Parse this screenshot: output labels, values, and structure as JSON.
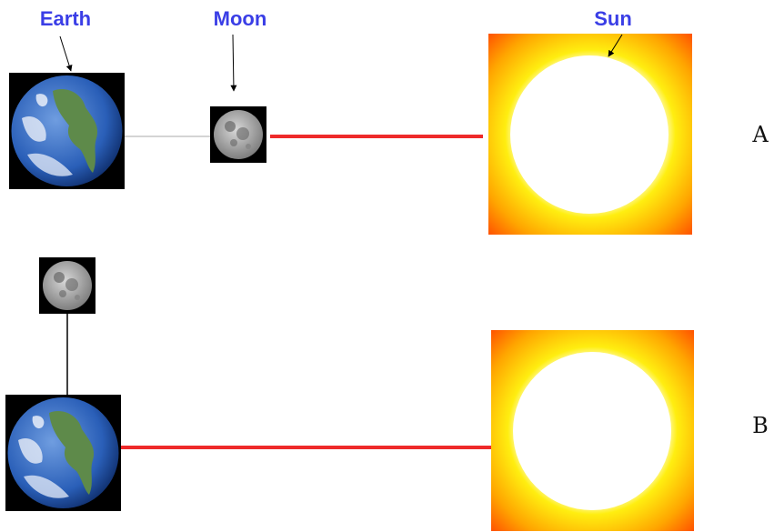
{
  "labels": {
    "earth": "Earth",
    "moon": "Moon",
    "sun": "Sun"
  },
  "rows": [
    {
      "label": "A"
    },
    {
      "label": "B"
    }
  ]
}
